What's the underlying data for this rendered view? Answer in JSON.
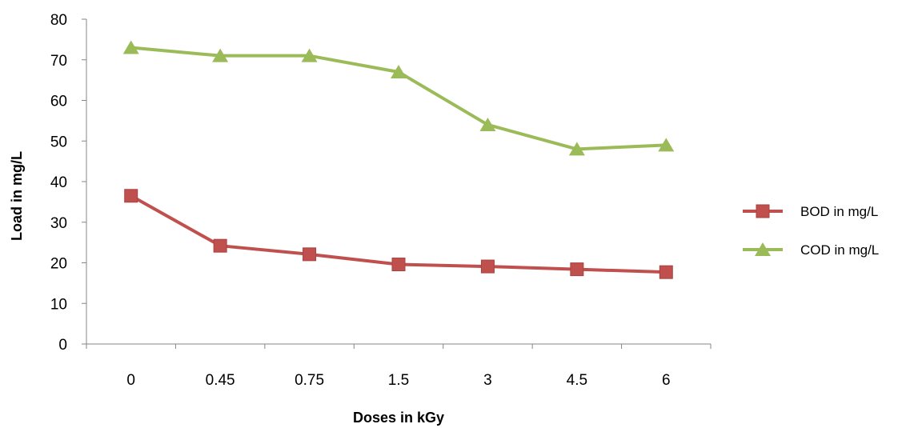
{
  "chart_data": {
    "type": "line",
    "categories": [
      "0",
      "0.45",
      "0.75",
      "1.5",
      "3",
      "4.5",
      "6"
    ],
    "series": [
      {
        "name": "BOD in mg/L",
        "values": [
          36.5,
          24.2,
          22.1,
          19.6,
          19.1,
          18.4,
          17.7
        ],
        "color": "#C0504D",
        "marker": "square"
      },
      {
        "name": "COD in mg/L",
        "values": [
          73,
          71,
          71,
          67,
          54,
          48,
          49
        ],
        "color": "#9BBB59",
        "marker": "triangle"
      }
    ],
    "yticks": [
      "0",
      "10",
      "20",
      "30",
      "40",
      "50",
      "60",
      "70",
      "80"
    ],
    "xlabel": "Doses in kGy",
    "ylabel": "Load in mg/L",
    "ylim": [
      0,
      80
    ],
    "grid": false,
    "legend_position": "right"
  }
}
